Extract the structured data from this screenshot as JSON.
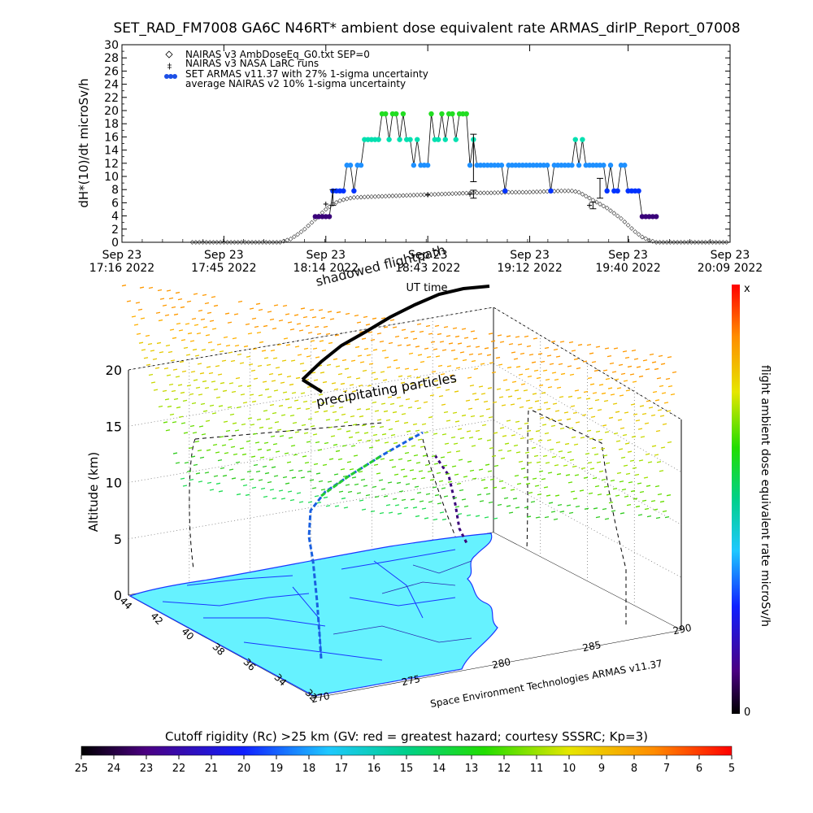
{
  "title": "SET_RAD_FM7008  GA6C N46RT* ambient dose equivalent rate ARMAS_dirIP_Report_07008",
  "chart_data": [
    {
      "type": "scatter",
      "ylabel": "dH*(10)/dt microSv/h",
      "xlabel": "UT time",
      "ylim": [
        0,
        30
      ],
      "yticks": [
        0,
        2,
        4,
        6,
        8,
        10,
        12,
        14,
        16,
        18,
        20,
        22,
        24,
        26,
        28,
        30
      ],
      "xlim_minutes": [
        0,
        173
      ],
      "xticks": [
        {
          "date": "Sep 23",
          "time": "17:16 2022",
          "t": 0
        },
        {
          "date": "Sep 23",
          "time": "17:45 2022",
          "t": 29
        },
        {
          "date": "Sep 23",
          "time": "18:14 2022",
          "t": 58
        },
        {
          "date": "Sep 23",
          "time": "18:43 2022",
          "t": 87
        },
        {
          "date": "Sep 23",
          "time": "19:12 2022",
          "t": 116
        },
        {
          "date": "Sep 23",
          "time": "19:40 2022",
          "t": 144
        },
        {
          "date": "Sep 23",
          "time": "20:09 2022",
          "t": 173
        }
      ],
      "legend": [
        {
          "marker": "diamond",
          "label": "NAIRAS v3 AmbDoseEq_G0.txt SEP=0"
        },
        {
          "marker": "plus",
          "label": "NAIRAS v3 NASA LaRC runs"
        },
        {
          "marker": "dot",
          "label": "SET ARMAS v11.37 with 27% 1-sigma uncertainty"
        },
        {
          "marker": "none",
          "label": "average NAIRAS v2 10% 1-sigma uncertainty"
        }
      ],
      "legend_position": "top-left",
      "series": [
        {
          "name": "NAIRAS v3 AmbDoseEq_G0.txt SEP=0",
          "marker": "diamond",
          "points": [
            [
              20,
              0
            ],
            [
              25,
              0
            ],
            [
              30,
              0
            ],
            [
              35,
              0
            ],
            [
              40,
              0
            ],
            [
              45,
              0
            ],
            [
              48,
              0.5
            ],
            [
              50,
              1.2
            ],
            [
              52,
              2
            ],
            [
              54,
              3
            ],
            [
              56,
              4
            ],
            [
              58,
              5
            ],
            [
              60,
              5.8
            ],
            [
              62,
              6.3
            ],
            [
              64,
              6.6
            ],
            [
              66,
              6.8
            ],
            [
              70,
              6.9
            ],
            [
              75,
              7
            ],
            [
              80,
              7.1
            ],
            [
              85,
              7.2
            ],
            [
              90,
              7.3
            ],
            [
              95,
              7.4
            ],
            [
              100,
              7.5
            ],
            [
              105,
              7.5
            ],
            [
              110,
              7.6
            ],
            [
              115,
              7.6
            ],
            [
              120,
              7.7
            ],
            [
              125,
              7.8
            ],
            [
              128,
              7.8
            ],
            [
              130,
              7.6
            ],
            [
              132,
              7
            ],
            [
              134,
              6.4
            ],
            [
              136,
              5.8
            ],
            [
              138,
              5.2
            ],
            [
              140,
              4.4
            ],
            [
              142,
              3.6
            ],
            [
              144,
              2.6
            ],
            [
              146,
              1.6
            ],
            [
              148,
              0.8
            ],
            [
              150,
              0.3
            ],
            [
              152,
              0
            ],
            [
              155,
              0
            ],
            [
              160,
              0
            ],
            [
              165,
              0
            ],
            [
              170,
              0
            ],
            [
              173,
              0
            ]
          ]
        },
        {
          "name": "NAIRAS v3 NASA LaRC runs",
          "marker": "plus",
          "points": [
            [
              58,
              5.8
            ],
            [
              87,
              7.2
            ],
            [
              99,
              7.3
            ],
            [
              133,
              5.6
            ]
          ]
        },
        {
          "name": "SET ARMAS v11.37 with 27% 1-sigma uncertainty",
          "marker": "dot",
          "points": [
            [
              55,
              3.9
            ],
            [
              56,
              3.9
            ],
            [
              57,
              3.9
            ],
            [
              58,
              3.9
            ],
            [
              59,
              3.9
            ],
            [
              60,
              7.8
            ],
            [
              61,
              7.8
            ],
            [
              62,
              7.8
            ],
            [
              63,
              7.8
            ],
            [
              64,
              11.7
            ],
            [
              65,
              11.7
            ],
            [
              66,
              7.8
            ],
            [
              67,
              11.7
            ],
            [
              68,
              11.7
            ],
            [
              69,
              15.6
            ],
            [
              70,
              15.6
            ],
            [
              71,
              15.6
            ],
            [
              72,
              15.6
            ],
            [
              73,
              15.6
            ],
            [
              74,
              19.5
            ],
            [
              75,
              19.5
            ],
            [
              76,
              15.6
            ],
            [
              77,
              19.5
            ],
            [
              78,
              19.5
            ],
            [
              79,
              15.6
            ],
            [
              80,
              19.5
            ],
            [
              81,
              15.6
            ],
            [
              82,
              15.6
            ],
            [
              83,
              11.7
            ],
            [
              84,
              15.6
            ],
            [
              85,
              11.7
            ],
            [
              86,
              11.7
            ],
            [
              87,
              11.7
            ],
            [
              88,
              19.5
            ],
            [
              89,
              15.6
            ],
            [
              90,
              15.6
            ],
            [
              91,
              19.5
            ],
            [
              92,
              15.6
            ],
            [
              93,
              19.5
            ],
            [
              94,
              19.5
            ],
            [
              95,
              15.6
            ],
            [
              96,
              19.5
            ],
            [
              97,
              19.5
            ],
            [
              98,
              19.5
            ],
            [
              99,
              11.7
            ],
            [
              100,
              15.6
            ],
            [
              101,
              11.7
            ],
            [
              102,
              11.7
            ],
            [
              103,
              11.7
            ],
            [
              104,
              11.7
            ],
            [
              105,
              11.7
            ],
            [
              106,
              11.7
            ],
            [
              107,
              11.7
            ],
            [
              108,
              11.7
            ],
            [
              109,
              7.8
            ],
            [
              110,
              11.7
            ],
            [
              111,
              11.7
            ],
            [
              112,
              11.7
            ],
            [
              113,
              11.7
            ],
            [
              114,
              11.7
            ],
            [
              115,
              11.7
            ],
            [
              116,
              11.7
            ],
            [
              117,
              11.7
            ],
            [
              118,
              11.7
            ],
            [
              119,
              11.7
            ],
            [
              120,
              11.7
            ],
            [
              121,
              11.7
            ],
            [
              122,
              7.8
            ],
            [
              123,
              11.7
            ],
            [
              124,
              11.7
            ],
            [
              125,
              11.7
            ],
            [
              126,
              11.7
            ],
            [
              127,
              11.7
            ],
            [
              128,
              11.7
            ],
            [
              129,
              15.6
            ],
            [
              130,
              11.7
            ],
            [
              131,
              15.6
            ],
            [
              132,
              11.7
            ],
            [
              133,
              11.7
            ],
            [
              134,
              11.7
            ],
            [
              135,
              11.7
            ],
            [
              136,
              11.7
            ],
            [
              137,
              11.7
            ],
            [
              138,
              7.8
            ],
            [
              139,
              11.7
            ],
            [
              140,
              7.8
            ],
            [
              141,
              7.8
            ],
            [
              142,
              11.7
            ],
            [
              143,
              11.7
            ],
            [
              144,
              7.8
            ],
            [
              145,
              7.8
            ],
            [
              146,
              7.8
            ],
            [
              147,
              7.8
            ],
            [
              148,
              3.9
            ],
            [
              149,
              3.9
            ],
            [
              150,
              3.9
            ],
            [
              151,
              3.9
            ],
            [
              152,
              3.9
            ]
          ]
        }
      ],
      "error_bars": [
        {
          "t": 60,
          "y": 6.8,
          "err": 1.2
        },
        {
          "t": 100,
          "y": 12.8,
          "err": 3.6
        },
        {
          "t": 100,
          "y": 7.3,
          "err": 0.6
        },
        {
          "t": 134,
          "y": 5.6,
          "err": 0.5
        },
        {
          "t": 136,
          "y": 8.2,
          "err": 1.5
        }
      ]
    },
    {
      "type": "heatmap",
      "ylabel": "Altitude (km)",
      "zticks": [
        0,
        5,
        10,
        15,
        20
      ],
      "lat_ticks": [
        44,
        42,
        40,
        38,
        36,
        34,
        32
      ],
      "lon_ticks": [
        270,
        275,
        280,
        285,
        290
      ],
      "annotations": [
        "shadowed flightpath",
        "precipitating particles"
      ],
      "credit": "Space Environment Technologies ARMAS v11.37",
      "colorbar": {
        "label": "flight ambient dose equivalent rate microSv/h",
        "top": "x",
        "bottom": "0"
      },
      "cutoff_bar": {
        "label": "Cutoff rigidity (Rc) >25 km (GV: red = greatest hazard; courtesy SSSRC; Kp=3)",
        "ticks": [
          25,
          24,
          23,
          22,
          21,
          20,
          19,
          18,
          17,
          16,
          15,
          14,
          13,
          12,
          11,
          10,
          9,
          8,
          7,
          6,
          5
        ]
      }
    }
  ],
  "colors": {
    "armas_low": "#3a007a",
    "armas_mid": "#0033ff",
    "armas_high": "#1e90ff",
    "armas_higher": "#00e0b0",
    "armas_top": "#22dd22",
    "map_fill": "#66f2ff",
    "coast": "#1a38ff"
  }
}
